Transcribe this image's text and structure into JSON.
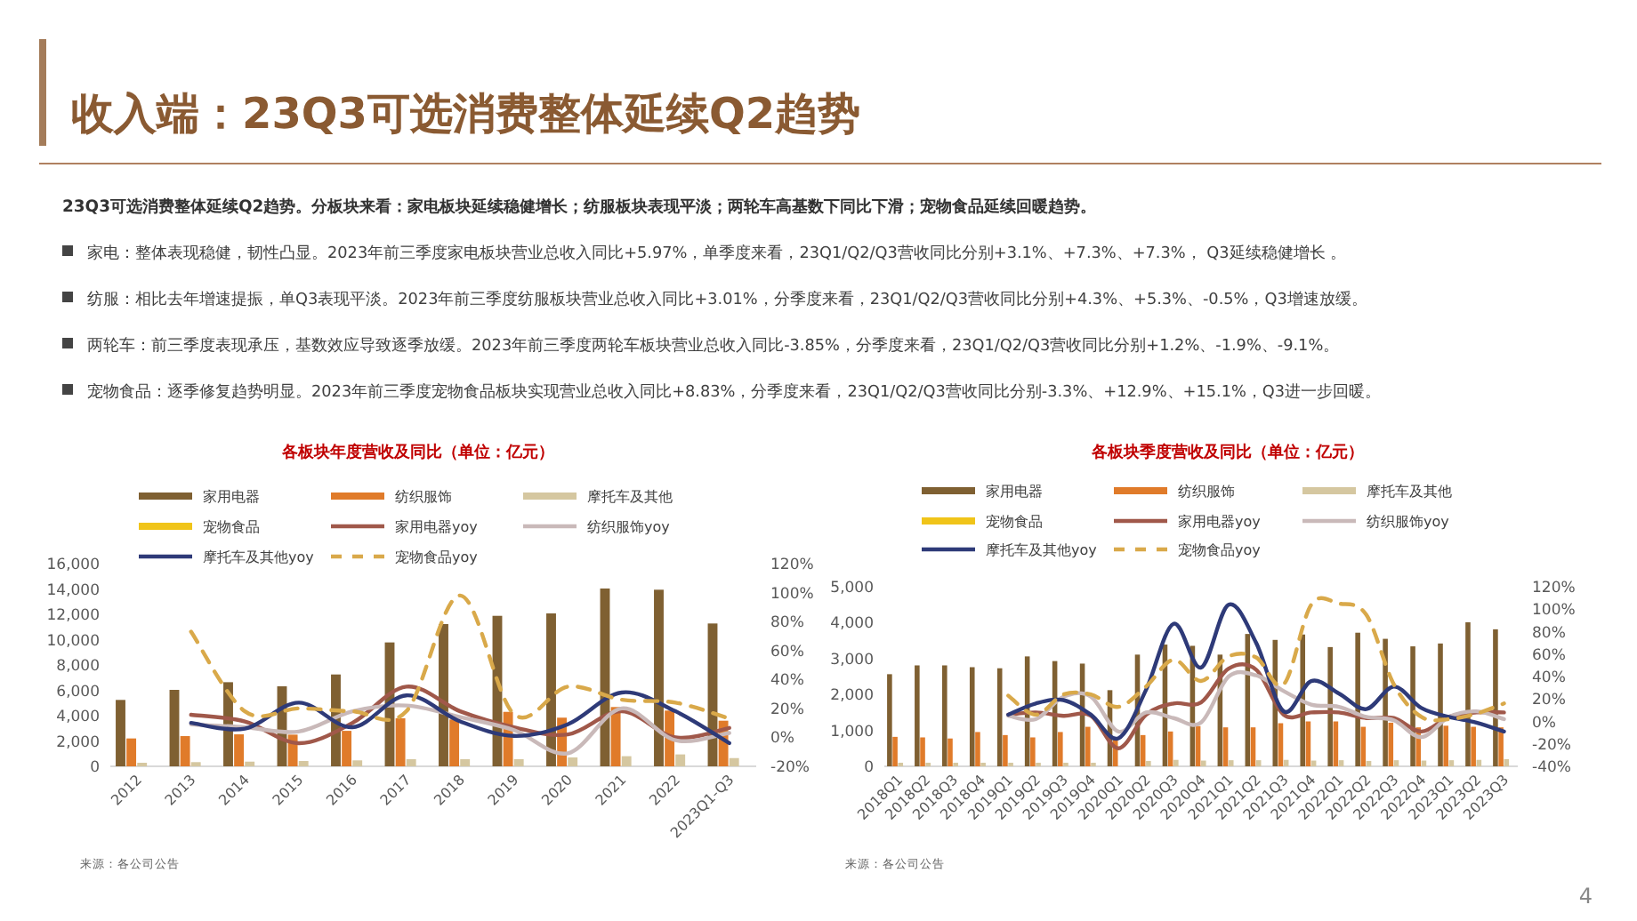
{
  "chart_data": [
    {
      "type": "other",
      "title": "收入端：23Q3可选消费整体延续Q2趋势",
      "subtitle": "23Q3可选消费整体延续Q2趋势。分板块来看：家电板块延续稳健增长；纺服板块表现平淡；两轮车高基数下同比下滑；宠物食品延续回暖趋势。",
      "annotations": [
        "家电：整体表现稳健，韧性凸显。2023年前三季度家电板块营业总收入同比+5.97%，单季度来看，23Q1/Q2/Q3营收同比分别+3.1%、+7.3%、+7.3%， Q3延续稳健增长 。",
        "纺服：相比去年增速提振，单Q3表现平淡。2023年前三季度纺服板块营业总收入同比+3.01%，分季度来看，23Q1/Q2/Q3营收同比分别+4.3%、+5.3%、-0.5%，Q3增速放缓。",
        "两轮车：前三季度表现承压，基数效应导致逐季放缓。2023年前三季度两轮车板块营业总收入同比-3.85%，分季度来看，23Q1/Q2/Q3营收同比分别+1.2%、-1.9%、-9.1%。",
        "宠物食品：逐季修复趋势明显。2023年前三季度宠物食品板块实现营业总收入同比+8.83%，分季度来看，23Q1/Q2/Q3营收同比分别-3.3%、+12.9%、+15.1%，Q3进一步回暖。",
        "4"
      ]
    },
    {
      "type": "bar",
      "title": "各板块年度营收及同比（单位：亿元）",
      "legend": "top",
      "annotations": [
        "来源：各公司公告"
      ],
      "categories": [
        "2012",
        "2013",
        "2014",
        "2015",
        "2016",
        "2017",
        "2018",
        "2019",
        "2020",
        "2021",
        "2022",
        "2023Q1-Q3"
      ],
      "ylim": [
        0,
        16000
      ],
      "yticks": [
        {
          "value": 0,
          "label": "0"
        },
        {
          "value": 2000,
          "label": "2,000"
        },
        {
          "value": 4000,
          "label": "4,000"
        },
        {
          "value": 6000,
          "label": "6,000"
        },
        {
          "value": 8000,
          "label": "8,000"
        },
        {
          "value": 10000,
          "label": "10,000"
        },
        {
          "value": 12000,
          "label": "12,000"
        },
        {
          "value": 14000,
          "label": "14,000"
        },
        {
          "value": 16000,
          "label": "16,000"
        }
      ],
      "y2lim": [
        -20,
        120
      ],
      "y2ticks": [
        {
          "value": -20,
          "label": "-20%"
        },
        {
          "value": 0,
          "label": "0%"
        },
        {
          "value": 20,
          "label": "20%"
        },
        {
          "value": 40,
          "label": "40%"
        },
        {
          "value": 60,
          "label": "60%"
        },
        {
          "value": 80,
          "label": "80%"
        },
        {
          "value": 100,
          "label": "100%"
        },
        {
          "value": 120,
          "label": "120%"
        }
      ],
      "series": [
        {
          "name": "家用电器",
          "color": "#7f6032",
          "values": [
            5240,
            6035,
            6640,
            6315,
            7250,
            9780,
            11230,
            11880,
            12070,
            14035,
            13940,
            11275
          ]
        },
        {
          "name": "纺织服饰",
          "color": "#e07b2a",
          "values": [
            2200,
            2385,
            2525,
            2500,
            2800,
            3790,
            3700,
            4300,
            3840,
            4680,
            4400,
            3600
          ]
        },
        {
          "name": "摩托车及其他",
          "color": "#d5c7a0",
          "values": [
            280,
            330,
            370,
            420,
            470,
            560,
            560,
            560,
            700,
            800,
            940,
            650
          ]
        },
        {
          "name": "宠物食品",
          "color": "#f0c419",
          "values": [
            null,
            null,
            null,
            null,
            null,
            null,
            null,
            null,
            null,
            null,
            null,
            null
          ]
        },
        {
          "name": "家用电器yoy",
          "type": "line",
          "axis": "y2",
          "color": "#a0584a",
          "values": [
            null,
            15.6,
            11,
            -4,
            10,
            35,
            18,
            7,
            2,
            18,
            0,
            6.5
          ]
        },
        {
          "name": "纺织服饰yoy",
          "type": "line",
          "axis": "y2",
          "color": "#c9b9b9",
          "values": [
            null,
            9,
            7,
            4,
            18,
            22,
            14,
            5,
            -11,
            20,
            -2,
            3
          ]
        },
        {
          "name": "摩托车及其他yoy",
          "type": "line",
          "axis": "y2",
          "color": "#2e3a78",
          "values": [
            null,
            10,
            6,
            24,
            7,
            29,
            11,
            1,
            9,
            31,
            18,
            -4
          ]
        },
        {
          "name": "宠物食品yoy",
          "type": "line",
          "axis": "y2",
          "line_style": "dashed",
          "color": "#d9a94a",
          "values": [
            null,
            73,
            18,
            20,
            18,
            18,
            98,
            16,
            35,
            26,
            24,
            13
          ]
        }
      ]
    },
    {
      "type": "bar",
      "title": "各板块季度营收及同比（单位：亿元）",
      "legend": "top",
      "annotations": [
        "来源：各公司公告"
      ],
      "categories": [
        "2018Q1",
        "2018Q2",
        "2018Q3",
        "2018Q4",
        "2019Q1",
        "2019Q2",
        "2019Q3",
        "2019Q4",
        "2020Q1",
        "2020Q2",
        "2020Q3",
        "2020Q4",
        "2021Q1",
        "2021Q2",
        "2021Q3",
        "2021Q4",
        "2022Q1",
        "2022Q2",
        "2022Q3",
        "2022Q4",
        "2023Q1",
        "2023Q2",
        "2023Q3"
      ],
      "ylim": [
        0,
        5000
      ],
      "yticks": [
        {
          "value": 0,
          "label": "0"
        },
        {
          "value": 1000,
          "label": "1,000"
        },
        {
          "value": 2000,
          "label": "2,000"
        },
        {
          "value": 3000,
          "label": "3,000"
        },
        {
          "value": 4000,
          "label": "4,000"
        },
        {
          "value": 5000,
          "label": "5,000"
        }
      ],
      "y2lim": [
        -40,
        120
      ],
      "y2ticks": [
        {
          "value": -40,
          "label": "-40%"
        },
        {
          "value": -20,
          "label": "-20%"
        },
        {
          "value": 0,
          "label": "0%"
        },
        {
          "value": 20,
          "label": "20%"
        },
        {
          "value": 40,
          "label": "40%"
        },
        {
          "value": 60,
          "label": "60%"
        },
        {
          "value": 80,
          "label": "80%"
        },
        {
          "value": 100,
          "label": "100%"
        },
        {
          "value": 120,
          "label": "120%"
        }
      ],
      "series": [
        {
          "name": "家用电器",
          "color": "#7f6032",
          "values": [
            2565,
            2810,
            2810,
            2760,
            2730,
            3060,
            2930,
            2860,
            2120,
            3110,
            3390,
            3355,
            3110,
            3685,
            3520,
            3670,
            3320,
            3720,
            3550,
            3340,
            3420,
            4010,
            3815
          ]
        },
        {
          "name": "纺织服饰",
          "color": "#e07b2a",
          "values": [
            820,
            805,
            775,
            955,
            870,
            805,
            955,
            1100,
            800,
            870,
            970,
            1120,
            1085,
            1085,
            1200,
            1250,
            1250,
            1100,
            1215,
            1085,
            1130,
            1100,
            1085
          ]
        },
        {
          "name": "摩托车及其他",
          "color": "#d5c7a0",
          "values": [
            100,
            100,
            100,
            100,
            100,
            100,
            100,
            100,
            null,
            150,
            180,
            160,
            170,
            170,
            180,
            160,
            170,
            150,
            170,
            160,
            170,
            180,
            200
          ]
        },
        {
          "name": "宠物食品",
          "color": "#f0c419",
          "values": [
            null,
            null,
            null,
            null,
            null,
            null,
            null,
            null,
            null,
            null,
            null,
            null,
            null,
            null,
            null,
            null,
            null,
            null,
            null,
            null,
            null,
            null,
            null
          ]
        },
        {
          "name": "家用电器yoy",
          "type": "line",
          "axis": "y2",
          "color": "#a0584a",
          "values": [
            null,
            null,
            null,
            null,
            6,
            8,
            5,
            5,
            -24,
            6,
            16,
            17,
            47,
            46,
            6,
            8,
            8,
            3,
            3,
            -9,
            4,
            8,
            8
          ]
        },
        {
          "name": "纺织服饰yoy",
          "type": "line",
          "axis": "y2",
          "color": "#c9b9b9",
          "values": [
            null,
            null,
            null,
            null,
            5,
            2,
            22,
            22,
            -9,
            8,
            3,
            -1,
            40,
            41,
            27,
            15,
            13,
            4,
            1,
            -14,
            4,
            9,
            2
          ]
        },
        {
          "name": "摩托车及其他yoy",
          "type": "line",
          "axis": "y2",
          "color": "#2e3a78",
          "values": [
            null,
            null,
            null,
            null,
            6,
            16,
            19,
            6,
            -15,
            28,
            87,
            48,
            104,
            70,
            9,
            36,
            25,
            11,
            31,
            12,
            4,
            -1,
            -9
          ]
        },
        {
          "name": "宠物食品yoy",
          "type": "line",
          "axis": "y2",
          "line_style": "dashed",
          "color": "#d9a94a",
          "values": [
            null,
            null,
            null,
            null,
            23,
            6,
            24,
            24,
            13,
            31,
            55,
            36,
            58,
            57,
            33,
            104,
            105,
            95,
            33,
            4,
            2,
            7,
            16
          ]
        }
      ]
    }
  ]
}
